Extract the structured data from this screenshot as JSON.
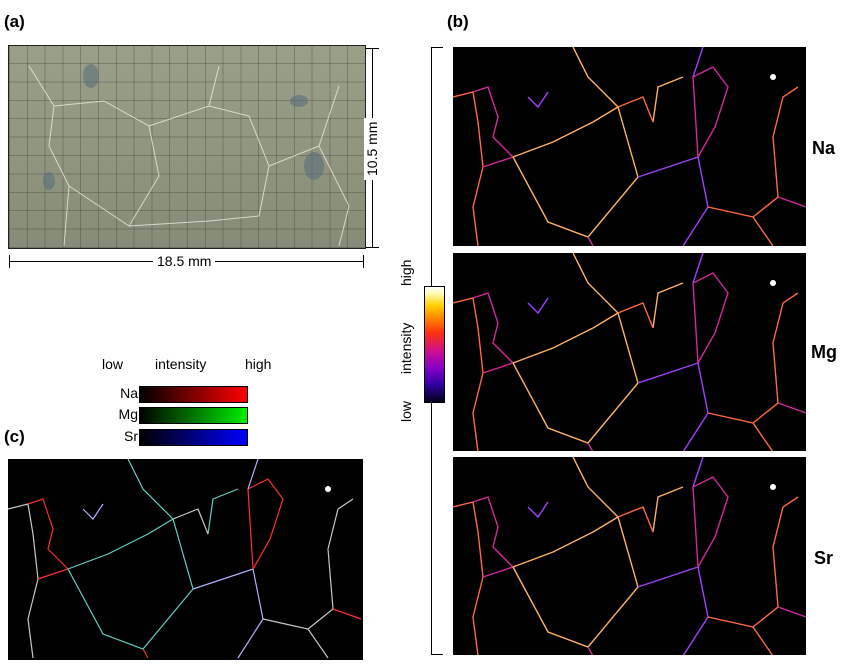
{
  "panels": {
    "a": {
      "label": "(a)",
      "width_label": "18.5 mm",
      "height_label": "10.5 mm"
    },
    "b": {
      "label": "(b)",
      "elements": [
        "Na",
        "Mg",
        "Sr"
      ]
    },
    "c": {
      "label": "(c)"
    }
  },
  "b_scale": {
    "low": "low",
    "mid": "intensity",
    "high": "high"
  },
  "c_legend": {
    "low": "low",
    "mid": "intensity",
    "high": "high",
    "rows": [
      {
        "name": "Na",
        "color": "#ff0000"
      },
      {
        "name": "Mg",
        "color": "#00ee00"
      },
      {
        "name": "Sr",
        "color": "#0000ff"
      }
    ]
  }
}
